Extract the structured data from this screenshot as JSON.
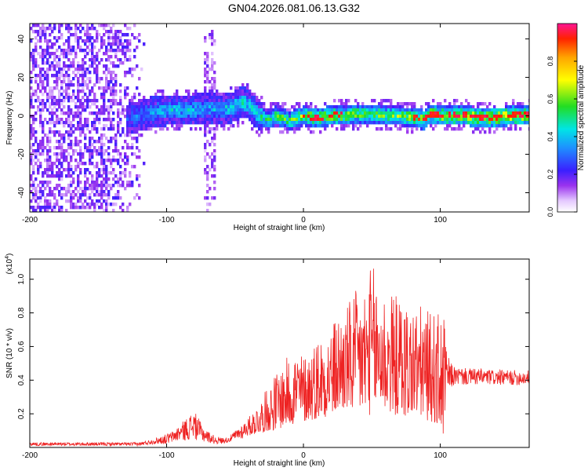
{
  "title": "GN04.2026.081.06.13.G32",
  "colors": {
    "snr_line": "#ee2222",
    "frame": "#000000",
    "spectrogram_low": "#7a00e0",
    "spectrogram_high": "#ff0000"
  },
  "chart_data": [
    {
      "type": "heatmap",
      "name": "spectrogram",
      "title": "GN04.2026.081.06.13.G32",
      "xlabel": "Height of straight line (km)",
      "ylabel": "Frequency (Hz)",
      "xlim": [
        -200,
        165
      ],
      "ylim": [
        -50,
        48
      ],
      "x_ticks": [
        -200,
        -100,
        0,
        100
      ],
      "x_tick_labels": [
        "-200",
        "-100",
        "0",
        "100"
      ],
      "y_ticks": [
        -40,
        -20,
        0,
        20,
        40
      ],
      "y_tick_labels": [
        "-40",
        "-20",
        "0",
        "20",
        "40"
      ],
      "colorbar": {
        "label": "Normalized spectral amplitude",
        "range": [
          0,
          1
        ],
        "ticks": [
          0.0,
          0.2,
          0.4,
          0.6,
          0.8
        ],
        "tick_labels": [
          "0.0",
          "0.2",
          "0.4",
          "0.6",
          "0.8"
        ]
      },
      "ridge": {
        "x": [
          -130,
          -120,
          -110,
          -100,
          -90,
          -80,
          -70,
          -60,
          -50,
          -45,
          -40,
          -35,
          -30,
          -25,
          -20,
          -15,
          -10,
          -5,
          0,
          10,
          20,
          30,
          40,
          50,
          60,
          70,
          80,
          88,
          92,
          100,
          110,
          120,
          130,
          140,
          150,
          165
        ],
        "freq": [
          -2,
          0,
          2,
          3,
          3,
          3,
          4,
          3,
          5,
          7,
          6,
          2,
          -1,
          -2,
          0,
          -1,
          -3,
          -1,
          0,
          -1,
          0,
          0,
          1,
          1,
          0,
          0,
          -1,
          -2,
          1,
          0,
          0,
          0,
          -1,
          -1,
          0,
          0
        ],
        "amplitude": [
          0.35,
          0.4,
          0.45,
          0.5,
          0.5,
          0.5,
          0.45,
          0.5,
          0.55,
          0.55,
          0.55,
          0.55,
          0.6,
          0.65,
          0.7,
          0.7,
          0.7,
          0.75,
          0.8,
          0.85,
          0.85,
          0.8,
          0.75,
          0.75,
          0.75,
          0.75,
          0.8,
          0.85,
          0.85,
          0.9,
          0.9,
          0.92,
          0.92,
          0.93,
          0.93,
          0.93
        ]
      },
      "noise_region_x": [
        -200,
        -115
      ],
      "noise_band_x": [
        -72,
        -65
      ]
    },
    {
      "type": "line",
      "name": "snr",
      "xlabel": "Height of straight line (km)",
      "ylabel": "SNR (10 * v/v)",
      "y_scale_label": "(x10",
      "y_scale_exponent": "4",
      "y_scale_close": ")",
      "xlim": [
        -200,
        165
      ],
      "ylim": [
        0,
        1.12
      ],
      "x_ticks": [
        -200,
        -100,
        0,
        100
      ],
      "x_tick_labels": [
        "-200",
        "-100",
        "0",
        "100"
      ],
      "y_ticks": [
        0.2,
        0.4,
        0.6,
        0.8,
        1.0
      ],
      "y_tick_labels": [
        "0.2",
        "0.4",
        "0.6",
        "0.8",
        "1.0"
      ],
      "envelope": {
        "x": [
          -200,
          -150,
          -120,
          -110,
          -100,
          -95,
          -90,
          -85,
          -80,
          -75,
          -70,
          -65,
          -60,
          -55,
          -50,
          -45,
          -40,
          -35,
          -30,
          -25,
          -20,
          -15,
          -10,
          -5,
          0,
          5,
          10,
          15,
          20,
          25,
          30,
          35,
          40,
          45,
          50,
          55,
          60,
          65,
          70,
          75,
          80,
          85,
          90,
          95,
          100,
          103,
          105,
          110,
          120,
          130,
          140,
          150,
          165
        ],
        "low": [
          0.01,
          0.01,
          0.01,
          0.02,
          0.02,
          0.03,
          0.04,
          0.04,
          0.05,
          0.03,
          0.03,
          0.02,
          0.02,
          0.03,
          0.04,
          0.05,
          0.07,
          0.08,
          0.09,
          0.1,
          0.1,
          0.12,
          0.13,
          0.14,
          0.15,
          0.16,
          0.17,
          0.18,
          0.19,
          0.2,
          0.22,
          0.2,
          0.2,
          0.18,
          0.2,
          0.22,
          0.2,
          0.2,
          0.18,
          0.18,
          0.18,
          0.18,
          0.16,
          0.15,
          0.1,
          0.05,
          0.3,
          0.37,
          0.37,
          0.37,
          0.37,
          0.37,
          0.37
        ],
        "high": [
          0.03,
          0.03,
          0.03,
          0.05,
          0.08,
          0.1,
          0.14,
          0.18,
          0.22,
          0.15,
          0.1,
          0.07,
          0.06,
          0.06,
          0.1,
          0.14,
          0.18,
          0.24,
          0.3,
          0.38,
          0.45,
          0.5,
          0.56,
          0.6,
          0.55,
          0.6,
          0.66,
          0.7,
          0.72,
          0.8,
          0.82,
          0.9,
          0.95,
          0.98,
          1.1,
          1.0,
          0.95,
          0.92,
          0.9,
          0.88,
          0.85,
          0.85,
          0.82,
          0.8,
          0.8,
          0.78,
          0.55,
          0.48,
          0.47,
          0.47,
          0.46,
          0.46,
          0.46
        ]
      },
      "n_samples": 1400
    }
  ]
}
